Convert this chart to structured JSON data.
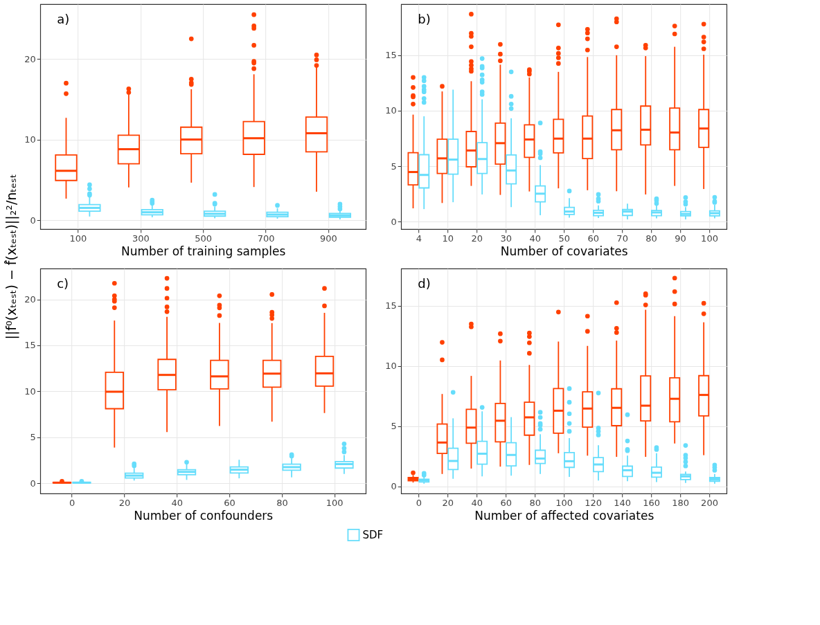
{
  "chart_data": [
    {
      "type": "box",
      "categories": [
        "100",
        "300",
        "500",
        "700",
        "900"
      ],
      "xlabel": "Number of training samples",
      "ylabel": "||f⁰(xₜₑₛₜ) − f̂(xₜₑₛₜ)||₂²/nₜₑₛₜ",
      "annotations": [
        "a)"
      ],
      "ylim": [
        -1.1,
        26.8
      ],
      "yticks": [
        0,
        10,
        20
      ],
      "grid": true,
      "legend": "bottom",
      "series": [
        {
          "color": "#ff4000",
          "boxes": [
            {
              "low": 2.68,
              "q1": 4.93,
              "median": 6.13,
              "q3": 8.09,
              "high": 12.7,
              "outliers": [
                15.7,
                17.0
              ]
            },
            {
              "low": 4.07,
              "q1": 7.01,
              "median": 8.81,
              "q3": 10.55,
              "high": 15.6,
              "outliers": [
                15.85,
                16.3
              ]
            },
            {
              "low": 4.66,
              "q1": 8.25,
              "median": 10.01,
              "q3": 11.54,
              "high": 16.25,
              "outliers": [
                16.84,
                17.05,
                17.5,
                22.5
              ]
            },
            {
              "low": 4.12,
              "q1": 8.17,
              "median": 10.17,
              "q3": 12.24,
              "high": 18.1,
              "outliers": [
                18.8,
                19.5,
                19.7,
                21.7,
                23.8,
                24.1,
                25.5
              ]
            },
            {
              "low": 3.53,
              "q1": 8.49,
              "median": 10.79,
              "q3": 12.8,
              "high": 19.0,
              "outliers": [
                19.2,
                19.9,
                20.5
              ]
            }
          ]
        },
        {
          "name": "SDF",
          "color": "#66ddfb",
          "boxes": [
            {
              "low": 0.46,
              "q1": 1.12,
              "median": 1.53,
              "q3": 1.93,
              "high": 2.9,
              "outliers": [
                3.1,
                3.3,
                3.9,
                4.4
              ]
            },
            {
              "low": 0.37,
              "q1": 0.67,
              "median": 0.99,
              "q3": 1.31,
              "high": 1.9,
              "outliers": [
                2.1,
                2.3,
                2.5
              ]
            },
            {
              "low": 0.24,
              "q1": 0.51,
              "median": 0.8,
              "q3": 1.12,
              "high": 1.7,
              "outliers": [
                2.0,
                2.1,
                3.2
              ]
            },
            {
              "low": 0.19,
              "q1": 0.43,
              "median": 0.7,
              "q3": 0.99,
              "high": 1.5,
              "outliers": [
                1.85
              ]
            },
            {
              "low": 0.11,
              "q1": 0.37,
              "median": 0.59,
              "q3": 0.83,
              "high": 1.2,
              "outliers": [
                1.4,
                1.7,
                2.0
              ]
            }
          ]
        }
      ]
    },
    {
      "type": "box",
      "categories": [
        "4",
        "10",
        "20",
        "30",
        "40",
        "50",
        "60",
        "70",
        "80",
        "90",
        "100"
      ],
      "xlabel": "Number of covariates",
      "annotations": [
        "b)"
      ],
      "ylim": [
        -0.66,
        19.6
      ],
      "yticks": [
        0,
        5,
        10,
        15
      ],
      "grid": true,
      "series": [
        {
          "color": "#ff4000",
          "boxes": [
            {
              "low": 1.21,
              "q1": 3.32,
              "median": 4.48,
              "q3": 6.22,
              "high": 9.65,
              "outliers": [
                10.6,
                11.25,
                11.36,
                12.1,
                13.0
              ]
            },
            {
              "low": 1.69,
              "q1": 4.35,
              "median": 5.71,
              "q3": 7.43,
              "high": 11.74,
              "outliers": [
                12.2
              ]
            },
            {
              "low": 3.23,
              "q1": 4.95,
              "median": 6.42,
              "q3": 8.13,
              "high": 12.66,
              "outliers": [
                13.56,
                13.78,
                14.1,
                14.44,
                15.76,
                16.7,
                16.97,
                18.7
              ]
            },
            {
              "low": 2.42,
              "q1": 5.19,
              "median": 7.08,
              "q3": 8.88,
              "high": 14.15,
              "outliers": [
                14.5,
                15.1,
                15.98
              ]
            },
            {
              "low": 2.73,
              "q1": 5.8,
              "median": 7.41,
              "q3": 8.73,
              "high": 13.0,
              "outliers": [
                13.3,
                13.56,
                13.7
              ]
            },
            {
              "low": 3.01,
              "q1": 6.2,
              "median": 7.49,
              "q3": 9.23,
              "high": 13.5,
              "outliers": [
                14.26,
                14.77,
                15.16,
                15.65,
                17.74
              ]
            },
            {
              "low": 2.84,
              "q1": 5.69,
              "median": 7.49,
              "q3": 9.52,
              "high": 14.84,
              "outliers": [
                15.47,
                16.48,
                17.0,
                17.34
              ]
            },
            {
              "low": 2.75,
              "q1": 6.48,
              "median": 8.24,
              "q3": 10.11,
              "high": 15.0,
              "outliers": [
                15.76,
                18.0,
                18.29
              ]
            },
            {
              "low": 2.46,
              "q1": 6.92,
              "median": 8.29,
              "q3": 10.42,
              "high": 14.92,
              "outliers": [
                15.65,
                15.9
              ]
            },
            {
              "low": 3.23,
              "q1": 6.48,
              "median": 8.04,
              "q3": 10.24,
              "high": 15.76,
              "outliers": [
                16.92,
                17.63
              ]
            },
            {
              "low": 2.95,
              "q1": 6.7,
              "median": 8.4,
              "q3": 10.11,
              "high": 15.05,
              "outliers": [
                15.58,
                16.2,
                16.64,
                17.8
              ]
            }
          ]
        },
        {
          "name": "SDF",
          "color": "#66ddfb",
          "boxes": [
            {
              "low": 1.14,
              "q1": 3.05,
              "median": 4.22,
              "q3": 6.04,
              "high": 9.5,
              "outliers": [
                10.75,
                11.1,
                11.7,
                11.9,
                12.2,
                12.7,
                13.0
              ]
            },
            {
              "low": 1.76,
              "q1": 4.29,
              "median": 5.6,
              "q3": 7.43,
              "high": 11.9
            },
            {
              "low": 2.46,
              "q1": 4.35,
              "median": 5.65,
              "q3": 7.12,
              "high": 11.03,
              "outliers": [
                11.47,
                11.7,
                12.57,
                12.79,
                13.23,
                13.85,
                14.0,
                14.7
              ]
            },
            {
              "low": 1.32,
              "q1": 3.41,
              "median": 4.62,
              "q3": 6.02,
              "high": 9.32,
              "outliers": [
                10.2,
                10.6,
                11.3,
                13.5
              ]
            },
            {
              "low": 0.59,
              "q1": 1.8,
              "median": 2.53,
              "q3": 3.23,
              "high": 5.1,
              "outliers": [
                5.76,
                6.13,
                6.31,
                8.9
              ]
            },
            {
              "low": 0.37,
              "q1": 0.66,
              "median": 0.92,
              "q3": 1.3,
              "high": 2.13,
              "outliers": [
                2.77
              ]
            },
            {
              "low": 0.33,
              "q1": 0.55,
              "median": 0.81,
              "q3": 1.03,
              "high": 1.47,
              "outliers": [
                1.85,
                2.07,
                2.46
              ]
            },
            {
              "low": 0.22,
              "q1": 0.57,
              "median": 0.92,
              "q3": 1.1,
              "high": 1.63
            },
            {
              "low": 0.31,
              "q1": 0.55,
              "median": 0.84,
              "q3": 1.01,
              "high": 1.47,
              "outliers": [
                1.65,
                1.91,
                2.07
              ]
            },
            {
              "low": 0.22,
              "q1": 0.53,
              "median": 0.7,
              "q3": 0.92,
              "high": 1.32,
              "outliers": [
                1.58,
                1.8,
                2.18
              ]
            },
            {
              "low": 0.31,
              "q1": 0.53,
              "median": 0.77,
              "q3": 0.99,
              "high": 1.52,
              "outliers": [
                1.74,
                1.85,
                2.2
              ]
            }
          ]
        }
      ]
    },
    {
      "type": "box",
      "categories": [
        "0",
        "20",
        "40",
        "60",
        "80",
        "100"
      ],
      "xlabel": "Number of confounders",
      "annotations": [
        "c)"
      ],
      "ylim": [
        -1.13,
        23.36
      ],
      "yticks": [
        0,
        5,
        10,
        15,
        20
      ],
      "grid": true,
      "series": [
        {
          "color": "#ff4000",
          "boxes": [
            {
              "low": 0.0,
              "q1": 0.02,
              "median": 0.05,
              "q3": 0.08,
              "high": 0.15,
              "outliers": [
                0.2
              ]
            },
            {
              "low": 3.87,
              "q1": 8.1,
              "median": 9.95,
              "q3": 12.07,
              "high": 17.7,
              "outliers": [
                19.1,
                19.8,
                20.0,
                20.4,
                21.76
              ]
            },
            {
              "low": 5.56,
              "q1": 10.16,
              "median": 11.78,
              "q3": 13.47,
              "high": 18.1,
              "outliers": [
                18.66,
                19.18,
                20.14,
                21.2,
                22.3
              ]
            },
            {
              "low": 6.22,
              "q1": 10.26,
              "median": 11.62,
              "q3": 13.36,
              "high": 17.44,
              "outliers": [
                18.24,
                19.08,
                19.37,
                20.4
              ]
            },
            {
              "low": 6.69,
              "q1": 10.45,
              "median": 11.92,
              "q3": 13.36,
              "high": 17.42,
              "outliers": [
                17.93,
                18.31,
                18.6,
                20.54
              ]
            },
            {
              "low": 7.63,
              "q1": 10.56,
              "median": 11.95,
              "q3": 13.8,
              "high": 18.54,
              "outliers": [
                19.3,
                21.2
              ]
            }
          ]
        },
        {
          "name": "SDF",
          "color": "#66ddfb",
          "boxes": [
            {
              "low": 0.0,
              "q1": 0.02,
              "median": 0.05,
              "q3": 0.09,
              "high": 0.15,
              "outliers": [
                0.2
              ]
            },
            {
              "low": 0.28,
              "q1": 0.56,
              "median": 0.82,
              "q3": 1.08,
              "high": 1.64,
              "outliers": [
                1.88,
                2.1
              ]
            },
            {
              "low": 0.35,
              "q1": 0.92,
              "median": 1.22,
              "q3": 1.46,
              "high": 2.1,
              "outliers": [
                2.28
              ]
            },
            {
              "low": 0.52,
              "q1": 1.1,
              "median": 1.46,
              "q3": 1.76,
              "high": 2.54
            },
            {
              "low": 0.63,
              "q1": 1.41,
              "median": 1.74,
              "q3": 2.07,
              "high": 2.7,
              "outliers": [
                2.93,
                3.1
              ]
            },
            {
              "low": 0.99,
              "q1": 1.64,
              "median": 2.07,
              "q3": 2.35,
              "high": 3.05,
              "outliers": [
                3.4,
                3.8,
                4.27
              ]
            }
          ]
        }
      ]
    },
    {
      "type": "box",
      "categories": [
        "0",
        "20",
        "40",
        "60",
        "80",
        "100",
        "120",
        "140",
        "160",
        "180",
        "200"
      ],
      "xlabel": "Number of affected covariates",
      "annotations": [
        "d)"
      ],
      "ylim": [
        -0.59,
        18.08
      ],
      "yticks": [
        0,
        5,
        10,
        15
      ],
      "grid": true,
      "series": [
        {
          "color": "#ff4000",
          "boxes": [
            {
              "low": 0.32,
              "q1": 0.47,
              "median": 0.59,
              "q3": 0.73,
              "high": 0.93,
              "outliers": [
                1.13
              ]
            },
            {
              "low": 1.03,
              "q1": 2.73,
              "median": 3.64,
              "q3": 5.18,
              "high": 7.67,
              "outliers": [
                10.5,
                11.96
              ]
            },
            {
              "low": 1.48,
              "q1": 3.58,
              "median": 4.88,
              "q3": 6.4,
              "high": 9.17,
              "outliers": [
                13.24,
                13.48
              ]
            },
            {
              "low": 1.64,
              "q1": 3.7,
              "median": 5.45,
              "q3": 6.88,
              "high": 10.45,
              "outliers": [
                12.06,
                12.67
              ]
            },
            {
              "low": 1.78,
              "q1": 4.25,
              "median": 5.73,
              "q3": 6.98,
              "high": 10.08,
              "outliers": [
                11.05,
                11.92,
                12.43,
                12.73
              ]
            },
            {
              "low": 2.75,
              "q1": 4.41,
              "median": 6.28,
              "q3": 8.12,
              "high": 12.02,
              "outliers": [
                14.47
              ]
            },
            {
              "low": 2.55,
              "q1": 4.92,
              "median": 6.46,
              "q3": 7.85,
              "high": 11.66,
              "outliers": [
                12.87,
                14.13
              ]
            },
            {
              "low": 2.45,
              "q1": 5.04,
              "median": 6.52,
              "q3": 8.1,
              "high": 12.1,
              "outliers": [
                12.77,
                13.12,
                15.25
              ]
            },
            {
              "low": 2.45,
              "q1": 5.43,
              "median": 6.7,
              "q3": 9.17,
              "high": 14.66,
              "outliers": [
                15.06,
                15.87,
                15.99
              ]
            },
            {
              "low": 3.56,
              "q1": 5.36,
              "median": 7.27,
              "q3": 9.01,
              "high": 14.13,
              "outliers": [
                15.14,
                16.17,
                17.29
              ]
            },
            {
              "low": 2.59,
              "q1": 5.85,
              "median": 7.59,
              "q3": 9.19,
              "high": 13.62,
              "outliers": [
                14.33,
                15.2
              ]
            }
          ]
        },
        {
          "name": "SDF",
          "color": "#66ddfb",
          "boxes": [
            {
              "low": 0.22,
              "q1": 0.36,
              "median": 0.49,
              "q3": 0.59,
              "high": 0.77,
              "outliers": [
                0.93,
                1.09
              ]
            },
            {
              "low": 0.63,
              "q1": 1.4,
              "median": 2.11,
              "q3": 3.16,
              "high": 5.65,
              "outliers": [
                7.81
              ]
            },
            {
              "low": 0.83,
              "q1": 1.84,
              "median": 2.71,
              "q3": 3.74,
              "high": 6.23,
              "outliers": [
                6.56
              ]
            },
            {
              "low": 0.89,
              "q1": 1.7,
              "median": 2.61,
              "q3": 3.62,
              "high": 5.75
            },
            {
              "low": 1.03,
              "q1": 1.9,
              "median": 2.31,
              "q3": 3.0,
              "high": 4.33,
              "outliers": [
                4.74,
                5.08,
                5.22,
                5.73,
                6.15
              ]
            },
            {
              "low": 0.79,
              "q1": 1.58,
              "median": 2.09,
              "q3": 2.81,
              "high": 4.0,
              "outliers": [
                4.57,
                5.22,
                6.03,
                6.98,
                8.12
              ]
            },
            {
              "low": 0.49,
              "q1": 1.23,
              "median": 1.82,
              "q3": 2.39,
              "high": 3.42,
              "outliers": [
                4.27,
                4.57,
                4.84,
                7.75
              ]
            },
            {
              "low": 0.43,
              "q1": 0.83,
              "median": 1.34,
              "q3": 1.68,
              "high": 2.55,
              "outliers": [
                2.96,
                3.06,
                3.77,
                5.95
              ]
            },
            {
              "low": 0.36,
              "q1": 0.77,
              "median": 1.13,
              "q3": 1.6,
              "high": 2.75,
              "outliers": [
                3.06,
                3.22
              ]
            },
            {
              "low": 0.28,
              "q1": 0.57,
              "median": 0.83,
              "q3": 0.99,
              "high": 1.23,
              "outliers": [
                1.7,
                2.04,
                2.35,
                2.59,
                3.4
              ]
            },
            {
              "low": 0.22,
              "q1": 0.43,
              "median": 0.59,
              "q3": 0.73,
              "high": 1.03,
              "outliers": [
                1.34,
                1.58,
                1.78
              ]
            }
          ]
        }
      ]
    }
  ]
}
